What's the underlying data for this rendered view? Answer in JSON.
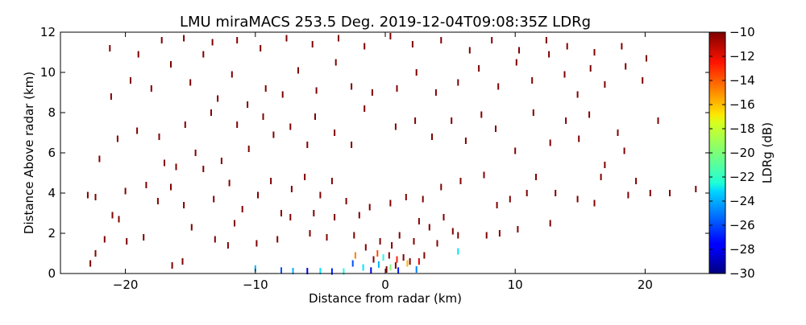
{
  "chart_data": {
    "type": "scatter",
    "title": "LMU miraMACS 253.5 Deg. 2019-12-04T09:08:35Z  LDRg",
    "xlabel": "Distance from radar (km)",
    "ylabel": "Distance Above radar  (km)",
    "xlim": [
      -25,
      25
    ],
    "ylim": [
      0,
      12
    ],
    "x_ticks": [
      -20,
      -10,
      0,
      10,
      20
    ],
    "x_tick_labels": [
      "−20",
      "−10",
      "0",
      "10",
      "20"
    ],
    "y_ticks": [
      0,
      2,
      4,
      6,
      8,
      10,
      12
    ],
    "y_tick_labels": [
      "0",
      "2",
      "4",
      "6",
      "8",
      "10",
      "12"
    ],
    "grid": false,
    "colorbar": {
      "label": "LDRg (dB)",
      "range": [
        -30,
        -10
      ],
      "colormap": "jet",
      "ticks": [
        -10,
        -12,
        -14,
        -16,
        -18,
        -20,
        -22,
        -24,
        -26,
        -28,
        -30
      ],
      "tick_labels": [
        "−10",
        "−12",
        "−14",
        "−16",
        "−18",
        "−20",
        "−22",
        "−24",
        "−26",
        "−28",
        "−30"
      ]
    },
    "points": [
      {
        "x": -22.7,
        "y": 0.5,
        "v": -10
      },
      {
        "x": -22.3,
        "y": 1.0,
        "v": -10
      },
      {
        "x": -21.6,
        "y": 1.7,
        "v": -10
      },
      {
        "x": -22.3,
        "y": 3.8,
        "v": -10
      },
      {
        "x": -22.9,
        "y": 3.9,
        "v": -10
      },
      {
        "x": -20.5,
        "y": 2.7,
        "v": -10
      },
      {
        "x": -19.9,
        "y": 1.6,
        "v": -10
      },
      {
        "x": -18.6,
        "y": 1.8,
        "v": -10
      },
      {
        "x": -17.5,
        "y": 3.6,
        "v": -10
      },
      {
        "x": -16.5,
        "y": 4.3,
        "v": -10
      },
      {
        "x": -16.4,
        "y": 0.4,
        "v": -10
      },
      {
        "x": -15.6,
        "y": 0.6,
        "v": -10
      },
      {
        "x": -14.9,
        "y": 2.3,
        "v": -10
      },
      {
        "x": -13.1,
        "y": 1.7,
        "v": -10
      },
      {
        "x": -12.1,
        "y": 1.4,
        "v": -10
      },
      {
        "x": -11.6,
        "y": 2.5,
        "v": -10
      },
      {
        "x": -9.9,
        "y": 1.5,
        "v": -10
      },
      {
        "x": -8.3,
        "y": 1.7,
        "v": -10
      },
      {
        "x": -8.0,
        "y": 3.0,
        "v": -10
      },
      {
        "x": -7.3,
        "y": 2.8,
        "v": -10
      },
      {
        "x": -5.8,
        "y": 2.0,
        "v": -10
      },
      {
        "x": -5.5,
        "y": 3.0,
        "v": -10
      },
      {
        "x": -4.5,
        "y": 1.8,
        "v": -10
      },
      {
        "x": -3.9,
        "y": 2.8,
        "v": -10
      },
      {
        "x": -2.4,
        "y": 1.9,
        "v": -10
      },
      {
        "x": -2.0,
        "y": 2.9,
        "v": -10
      },
      {
        "x": -1.5,
        "y": 1.3,
        "v": -10
      },
      {
        "x": -0.9,
        "y": 0.7,
        "v": -10
      },
      {
        "x": -0.4,
        "y": 1.6,
        "v": -10
      },
      {
        "x": 0.1,
        "y": 0.2,
        "v": -10
      },
      {
        "x": 0.3,
        "y": 0.9,
        "v": -10
      },
      {
        "x": 0.5,
        "y": 1.4,
        "v": -10
      },
      {
        "x": 0.8,
        "y": 0.4,
        "v": -10
      },
      {
        "x": 1.1,
        "y": 1.9,
        "v": -10
      },
      {
        "x": 1.4,
        "y": 0.8,
        "v": -10
      },
      {
        "x": 1.9,
        "y": 0.6,
        "v": -10
      },
      {
        "x": 2.2,
        "y": 1.6,
        "v": -10
      },
      {
        "x": 2.6,
        "y": 2.6,
        "v": -10
      },
      {
        "x": 3.0,
        "y": 0.9,
        "v": -10
      },
      {
        "x": 3.4,
        "y": 2.3,
        "v": -10
      },
      {
        "x": 4.0,
        "y": 1.5,
        "v": -10
      },
      {
        "x": 4.5,
        "y": 2.8,
        "v": -10
      },
      {
        "x": 5.2,
        "y": 2.1,
        "v": -10
      },
      {
        "x": 5.6,
        "y": 1.9,
        "v": -10
      },
      {
        "x": 7.8,
        "y": 1.9,
        "v": -10
      },
      {
        "x": 8.8,
        "y": 2.0,
        "v": -10
      },
      {
        "x": 10.2,
        "y": 2.2,
        "v": -10
      },
      {
        "x": 12.7,
        "y": 2.5,
        "v": -10
      },
      {
        "x": -21.0,
        "y": 2.9,
        "v": -10
      },
      {
        "x": -20.0,
        "y": 4.1,
        "v": -10
      },
      {
        "x": -18.4,
        "y": 4.4,
        "v": -10
      },
      {
        "x": -17.0,
        "y": 5.5,
        "v": -10
      },
      {
        "x": -15.5,
        "y": 3.4,
        "v": -10
      },
      {
        "x": -14.0,
        "y": 5.2,
        "v": -10
      },
      {
        "x": -13.2,
        "y": 3.7,
        "v": -10
      },
      {
        "x": -12.0,
        "y": 4.5,
        "v": -10
      },
      {
        "x": -11.0,
        "y": 3.2,
        "v": -10
      },
      {
        "x": -9.8,
        "y": 3.9,
        "v": -10
      },
      {
        "x": -8.8,
        "y": 4.6,
        "v": -10
      },
      {
        "x": -7.2,
        "y": 4.2,
        "v": -10
      },
      {
        "x": -6.2,
        "y": 4.8,
        "v": -10
      },
      {
        "x": -5.0,
        "y": 3.9,
        "v": -10
      },
      {
        "x": -4.1,
        "y": 4.6,
        "v": -10
      },
      {
        "x": -3.0,
        "y": 3.6,
        "v": -10
      },
      {
        "x": -1.2,
        "y": 3.3,
        "v": -10
      },
      {
        "x": 0.4,
        "y": 3.5,
        "v": -10
      },
      {
        "x": 1.6,
        "y": 3.8,
        "v": -10
      },
      {
        "x": 2.9,
        "y": 3.7,
        "v": -10
      },
      {
        "x": 4.3,
        "y": 4.3,
        "v": -10
      },
      {
        "x": 5.8,
        "y": 4.6,
        "v": -10
      },
      {
        "x": 7.6,
        "y": 4.9,
        "v": -10
      },
      {
        "x": 8.6,
        "y": 3.4,
        "v": -10
      },
      {
        "x": 9.6,
        "y": 3.7,
        "v": -10
      },
      {
        "x": 10.9,
        "y": 4.0,
        "v": -10
      },
      {
        "x": 11.6,
        "y": 4.8,
        "v": -10
      },
      {
        "x": 13.1,
        "y": 4.0,
        "v": -10
      },
      {
        "x": 14.8,
        "y": 3.7,
        "v": -10
      },
      {
        "x": 16.1,
        "y": 3.5,
        "v": -10
      },
      {
        "x": 16.6,
        "y": 4.8,
        "v": -10
      },
      {
        "x": 18.7,
        "y": 3.9,
        "v": -10
      },
      {
        "x": 19.3,
        "y": 4.6,
        "v": -10
      },
      {
        "x": 20.4,
        "y": 4.0,
        "v": -10
      },
      {
        "x": 21.9,
        "y": 4.0,
        "v": -10
      },
      {
        "x": 23.9,
        "y": 4.2,
        "v": -10
      },
      {
        "x": -22.0,
        "y": 5.7,
        "v": -10
      },
      {
        "x": -20.6,
        "y": 6.7,
        "v": -10
      },
      {
        "x": -19.1,
        "y": 7.1,
        "v": -10
      },
      {
        "x": -17.4,
        "y": 6.8,
        "v": -10
      },
      {
        "x": -16.1,
        "y": 5.3,
        "v": -10
      },
      {
        "x": -15.4,
        "y": 7.4,
        "v": -10
      },
      {
        "x": -14.6,
        "y": 6.0,
        "v": -10
      },
      {
        "x": -13.4,
        "y": 8.0,
        "v": -10
      },
      {
        "x": -12.6,
        "y": 5.6,
        "v": -10
      },
      {
        "x": -11.4,
        "y": 7.4,
        "v": -10
      },
      {
        "x": -10.5,
        "y": 6.2,
        "v": -10
      },
      {
        "x": -9.4,
        "y": 7.8,
        "v": -10
      },
      {
        "x": -8.6,
        "y": 6.9,
        "v": -10
      },
      {
        "x": -7.3,
        "y": 7.3,
        "v": -10
      },
      {
        "x": -6.0,
        "y": 6.4,
        "v": -10
      },
      {
        "x": -5.4,
        "y": 7.8,
        "v": -10
      },
      {
        "x": -3.9,
        "y": 7.0,
        "v": -10
      },
      {
        "x": -2.6,
        "y": 6.4,
        "v": -10
      },
      {
        "x": -1.6,
        "y": 8.2,
        "v": -10
      },
      {
        "x": 0.8,
        "y": 7.3,
        "v": -10
      },
      {
        "x": 2.3,
        "y": 7.6,
        "v": -10
      },
      {
        "x": 3.6,
        "y": 6.8,
        "v": -10
      },
      {
        "x": 5.1,
        "y": 7.6,
        "v": -10
      },
      {
        "x": 6.2,
        "y": 6.6,
        "v": -10
      },
      {
        "x": 7.4,
        "y": 7.9,
        "v": -10
      },
      {
        "x": 8.5,
        "y": 7.2,
        "v": -10
      },
      {
        "x": 10.0,
        "y": 6.1,
        "v": -10
      },
      {
        "x": 11.4,
        "y": 8.0,
        "v": -10
      },
      {
        "x": 12.7,
        "y": 6.5,
        "v": -10
      },
      {
        "x": 13.9,
        "y": 7.6,
        "v": -10
      },
      {
        "x": 14.9,
        "y": 6.7,
        "v": -10
      },
      {
        "x": 15.7,
        "y": 7.9,
        "v": -10
      },
      {
        "x": 16.9,
        "y": 5.4,
        "v": -10
      },
      {
        "x": 17.9,
        "y": 7.0,
        "v": -10
      },
      {
        "x": 18.4,
        "y": 6.1,
        "v": -10
      },
      {
        "x": 21.0,
        "y": 7.6,
        "v": -10
      },
      {
        "x": -21.1,
        "y": 8.8,
        "v": -10
      },
      {
        "x": -19.6,
        "y": 9.6,
        "v": -10
      },
      {
        "x": -18.0,
        "y": 9.2,
        "v": -10
      },
      {
        "x": -16.5,
        "y": 10.4,
        "v": -10
      },
      {
        "x": -15.0,
        "y": 9.5,
        "v": -10
      },
      {
        "x": -14.0,
        "y": 10.9,
        "v": -10
      },
      {
        "x": -12.9,
        "y": 8.7,
        "v": -10
      },
      {
        "x": -11.8,
        "y": 9.9,
        "v": -10
      },
      {
        "x": -10.6,
        "y": 8.4,
        "v": -10
      },
      {
        "x": -9.2,
        "y": 9.2,
        "v": -10
      },
      {
        "x": -7.9,
        "y": 8.9,
        "v": -10
      },
      {
        "x": -6.7,
        "y": 10.1,
        "v": -10
      },
      {
        "x": -5.3,
        "y": 9.1,
        "v": -10
      },
      {
        "x": -3.8,
        "y": 10.5,
        "v": -10
      },
      {
        "x": -2.6,
        "y": 9.3,
        "v": -10
      },
      {
        "x": -1.0,
        "y": 9.0,
        "v": -10
      },
      {
        "x": 0.9,
        "y": 9.2,
        "v": -10
      },
      {
        "x": 2.4,
        "y": 10.0,
        "v": -10
      },
      {
        "x": 3.9,
        "y": 9.0,
        "v": -10
      },
      {
        "x": 5.6,
        "y": 9.5,
        "v": -10
      },
      {
        "x": 7.2,
        "y": 10.2,
        "v": -10
      },
      {
        "x": 8.7,
        "y": 9.3,
        "v": -10
      },
      {
        "x": 10.1,
        "y": 10.5,
        "v": -10
      },
      {
        "x": 11.3,
        "y": 9.6,
        "v": -10
      },
      {
        "x": 12.6,
        "y": 10.9,
        "v": -10
      },
      {
        "x": 13.8,
        "y": 9.9,
        "v": -10
      },
      {
        "x": 14.8,
        "y": 8.9,
        "v": -10
      },
      {
        "x": 15.8,
        "y": 10.2,
        "v": -10
      },
      {
        "x": 16.9,
        "y": 9.4,
        "v": -10
      },
      {
        "x": 18.5,
        "y": 10.3,
        "v": -10
      },
      {
        "x": 19.8,
        "y": 9.6,
        "v": -10
      },
      {
        "x": -21.2,
        "y": 11.2,
        "v": -10
      },
      {
        "x": -19.0,
        "y": 10.9,
        "v": -10
      },
      {
        "x": -17.2,
        "y": 11.6,
        "v": -10
      },
      {
        "x": -15.5,
        "y": 11.7,
        "v": -10
      },
      {
        "x": -13.3,
        "y": 11.5,
        "v": -10
      },
      {
        "x": -11.4,
        "y": 11.6,
        "v": -10
      },
      {
        "x": -9.6,
        "y": 11.2,
        "v": -10
      },
      {
        "x": -7.6,
        "y": 11.7,
        "v": -10
      },
      {
        "x": -5.6,
        "y": 11.4,
        "v": -10
      },
      {
        "x": -3.6,
        "y": 11.7,
        "v": -10
      },
      {
        "x": -1.6,
        "y": 11.3,
        "v": -10
      },
      {
        "x": 0.4,
        "y": 11.8,
        "v": -10
      },
      {
        "x": 2.1,
        "y": 11.4,
        "v": -10
      },
      {
        "x": 4.3,
        "y": 11.6,
        "v": -10
      },
      {
        "x": 6.5,
        "y": 11.1,
        "v": -10
      },
      {
        "x": 8.2,
        "y": 11.6,
        "v": -10
      },
      {
        "x": 10.3,
        "y": 11.1,
        "v": -10
      },
      {
        "x": 12.4,
        "y": 11.6,
        "v": -10
      },
      {
        "x": 14.0,
        "y": 11.3,
        "v": -10
      },
      {
        "x": 16.1,
        "y": 11.0,
        "v": -10
      },
      {
        "x": 18.2,
        "y": 11.3,
        "v": -10
      },
      {
        "x": 20.1,
        "y": 10.7,
        "v": -10
      },
      {
        "x": -10.0,
        "y": 0.25,
        "v": -24
      },
      {
        "x": -8.0,
        "y": 0.15,
        "v": -26
      },
      {
        "x": -7.1,
        "y": 0.12,
        "v": -24
      },
      {
        "x": -6.0,
        "y": 0.12,
        "v": -28
      },
      {
        "x": -5.0,
        "y": 0.12,
        "v": -23
      },
      {
        "x": -4.1,
        "y": 0.1,
        "v": -27
      },
      {
        "x": -3.2,
        "y": 0.1,
        "v": -22
      },
      {
        "x": -2.5,
        "y": 0.5,
        "v": -26
      },
      {
        "x": -1.7,
        "y": 0.3,
        "v": -23
      },
      {
        "x": -1.1,
        "y": 0.15,
        "v": -28
      },
      {
        "x": -0.5,
        "y": 0.45,
        "v": -24
      },
      {
        "x": -0.15,
        "y": 0.8,
        "v": -22
      },
      {
        "x": 0.4,
        "y": 0.3,
        "v": -20
      },
      {
        "x": 1.0,
        "y": 0.15,
        "v": -27
      },
      {
        "x": 1.7,
        "y": 0.5,
        "v": -16
      },
      {
        "x": 2.4,
        "y": 0.2,
        "v": -25
      },
      {
        "x": 5.6,
        "y": 1.1,
        "v": -23
      },
      {
        "x": -0.6,
        "y": 1.0,
        "v": -14
      },
      {
        "x": 0.9,
        "y": 0.7,
        "v": -13
      },
      {
        "x": -2.3,
        "y": 0.9,
        "v": -15
      },
      {
        "x": 2.6,
        "y": 0.6,
        "v": -12
      }
    ]
  }
}
